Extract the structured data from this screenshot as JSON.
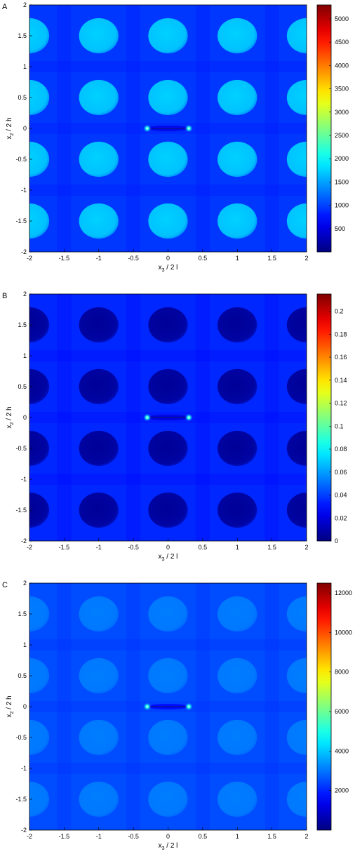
{
  "chart_data": [
    {
      "type": "heatmap",
      "panel_label": "A",
      "xlabel": "x",
      "xlabel_sub": "3",
      "xlabel_rest": "/ 2 l",
      "ylabel": "x",
      "ylabel_sub": "2",
      "ylabel_rest": "/ 2 h",
      "xlim": [
        -2,
        2
      ],
      "ylim": [
        -2,
        2
      ],
      "x_ticks": [
        "-2",
        "-1.5",
        "-1",
        "-0.5",
        "0",
        "0.5",
        "1",
        "1.5",
        "2"
      ],
      "y_ticks": [
        "2",
        "1.5",
        "1",
        "0.5",
        "0",
        "-0.5",
        "-1",
        "-1.5",
        "-2"
      ],
      "colorbar": {
        "min": 0,
        "max": 5300,
        "ticks": [
          "5000",
          "4500",
          "4000",
          "3500",
          "3000",
          "2500",
          "2000",
          "1500",
          "1000",
          "500"
        ]
      },
      "background_value": 950,
      "inclusion_value": 1750,
      "inclusion_centers_x": [
        -2,
        -1,
        0,
        1,
        2
      ],
      "inclusion_centers_y": [
        1.5,
        0.5,
        -0.5,
        -1.5
      ],
      "crack": {
        "x_from": -0.3,
        "x_to": 0.3,
        "y": 0
      }
    },
    {
      "type": "heatmap",
      "panel_label": "B",
      "xlabel": "x",
      "xlabel_sub": "3",
      "xlabel_rest": "/ 2 l",
      "ylabel": "x",
      "ylabel_sub": "2",
      "ylabel_rest": "/ 2 h",
      "xlim": [
        -2,
        2
      ],
      "ylim": [
        -2,
        2
      ],
      "x_ticks": [
        "-2",
        "-1.5",
        "-1",
        "-0.5",
        "0",
        "0.5",
        "1",
        "1.5",
        "2"
      ],
      "y_ticks": [
        "2",
        "1.5",
        "1",
        "0.5",
        "0",
        "-0.5",
        "-1",
        "-1.5",
        "-2"
      ],
      "colorbar": {
        "min": 0,
        "max": 0.215,
        "ticks": [
          "0.2",
          "0.18",
          "0.16",
          "0.14",
          "0.12",
          "0.1",
          "0.08",
          "0.06",
          "0.04",
          "0.02",
          "0"
        ]
      },
      "background_value": 0.035,
      "inclusion_value": 0.005,
      "inclusion_centers_x": [
        -2,
        -1,
        0,
        1,
        2
      ],
      "inclusion_centers_y": [
        1.5,
        0.5,
        -0.5,
        -1.5
      ],
      "crack": {
        "x_from": -0.3,
        "x_to": 0.3,
        "y": 0
      }
    },
    {
      "type": "heatmap",
      "panel_label": "C",
      "xlabel": "x",
      "xlabel_sub": "3",
      "xlabel_rest": "/ 2 l",
      "ylabel": "x",
      "ylabel_sub": "2",
      "ylabel_rest": "/ 2 h",
      "xlim": [
        -2,
        2
      ],
      "ylim": [
        -2,
        2
      ],
      "x_ticks": [
        "-2",
        "-1.5",
        "-1",
        "-0.5",
        "0",
        "0.5",
        "1",
        "1.5",
        "2"
      ],
      "y_ticks": [
        "2",
        "1.5",
        "1",
        "0.5",
        "0",
        "-0.5",
        "-1",
        "-1.5",
        "-2"
      ],
      "colorbar": {
        "min": 0,
        "max": 12500,
        "ticks": [
          "12000",
          "10000",
          "8000",
          "6000",
          "4000",
          "2000"
        ]
      },
      "background_value": 2500,
      "inclusion_value": 3100,
      "inclusion_centers_x": [
        -2,
        -1,
        0,
        1,
        2
      ],
      "inclusion_centers_y": [
        1.5,
        0.5,
        -0.5,
        -1.5
      ],
      "crack": {
        "x_from": -0.3,
        "x_to": 0.3,
        "y": 0
      }
    }
  ]
}
